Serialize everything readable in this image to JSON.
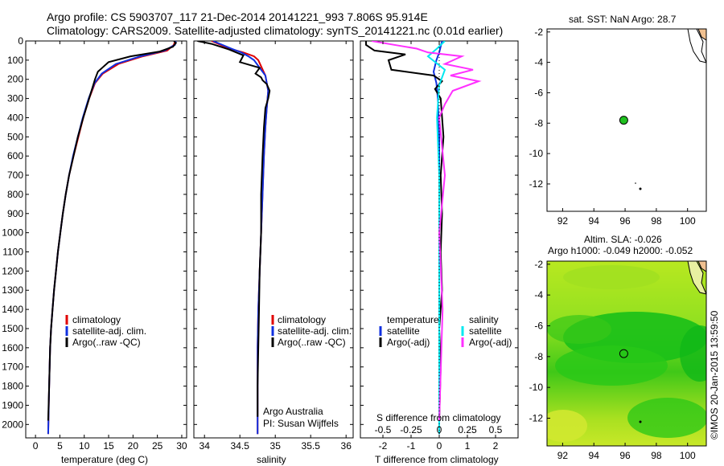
{
  "header": {
    "title_line1": "Argo profile: CS 5903707_117 21-Dec-2014 20141221_993 7.806S 95.914E",
    "title_line2": "Climatology: CARS2009. Satellite-adjusted climatology: synTS_20141221.nc (0.01d earlier)"
  },
  "colors": {
    "climatology": "#e00000",
    "satellite": "#1030e0",
    "argo": "#000000",
    "sat_salt": "#00e8f0",
    "argo_salt": "#ff30ff",
    "map_dot": "#20c020"
  },
  "chart_data": [
    {
      "type": "line",
      "id": "temperature",
      "xlabel": "temperature (deg C)",
      "xlim": [
        -2,
        31
      ],
      "ylim": [
        2070,
        0
      ],
      "xticks": [
        0,
        5,
        10,
        15,
        20,
        25,
        30
      ],
      "xtick_labels": [
        "0",
        "5",
        "10",
        "15",
        "20",
        "25",
        "30"
      ],
      "yticks": [
        0,
        100,
        200,
        300,
        400,
        500,
        600,
        700,
        800,
        900,
        1000,
        1100,
        1200,
        1300,
        1400,
        1500,
        1600,
        1700,
        1800,
        1900,
        2000
      ],
      "ytick_labels": [
        "0",
        "100",
        "200",
        "300",
        "400",
        "500",
        "600",
        "700",
        "800",
        "900",
        "1000",
        "1100",
        "1200",
        "1300",
        "1400",
        "1500",
        "1600",
        "1700",
        "1800",
        "1900",
        "2000"
      ],
      "legend": [
        "climatology",
        "satellite-adj. clim.",
        "Argo(..raw -QC)"
      ],
      "series": [
        {
          "name": "climatology",
          "color": "#e00000",
          "x": [
            28.6,
            28.4,
            27,
            22,
            17,
            13.8,
            12.2,
            11,
            9.8,
            8.8,
            7.8,
            6.9,
            6.2,
            5.6,
            5.1,
            4.6,
            4.2,
            3.8,
            3.5,
            3.2,
            3.0,
            2.8,
            2.6
          ],
          "y": [
            0,
            20,
            50,
            80,
            120,
            170,
            220,
            300,
            400,
            500,
            600,
            700,
            800,
            900,
            1000,
            1100,
            1200,
            1300,
            1400,
            1500,
            1600,
            1800,
            2050
          ]
        },
        {
          "name": "satellite-adj. clim.",
          "color": "#1030e0",
          "x": [
            28.8,
            28.6,
            26.5,
            21.5,
            16.5,
            13.6,
            12.1,
            10.9,
            9.7,
            8.7,
            7.7,
            6.9,
            6.2,
            5.6,
            5.1,
            4.6,
            4.2,
            3.8,
            3.5,
            3.2,
            3.0,
            2.8,
            2.6
          ],
          "y": [
            0,
            20,
            50,
            80,
            120,
            170,
            220,
            300,
            400,
            500,
            600,
            700,
            800,
            900,
            1000,
            1100,
            1200,
            1300,
            1400,
            1500,
            1600,
            1800,
            2050
          ]
        },
        {
          "name": "Argo",
          "color": "#000000",
          "x": [
            28.4,
            28.8,
            28.2,
            25.5,
            19.5,
            15,
            12.8,
            12.2,
            11,
            9.8,
            8.7,
            7.8,
            6.9,
            6.2,
            5.6,
            5.1,
            4.6,
            4.2,
            3.8,
            3.5,
            3.2,
            3.0,
            2.8,
            2.6
          ],
          "y": [
            0,
            10,
            30,
            55,
            80,
            110,
            160,
            200,
            300,
            400,
            500,
            600,
            700,
            800,
            900,
            1000,
            1100,
            1200,
            1300,
            1400,
            1500,
            1600,
            1800,
            1980
          ]
        }
      ]
    },
    {
      "type": "line",
      "id": "salinity",
      "xlabel": "salinity",
      "xlim": [
        33.85,
        36.1
      ],
      "ylim": [
        2070,
        0
      ],
      "xticks": [
        34,
        34.5,
        35,
        35.5,
        36
      ],
      "xtick_labels": [
        "34",
        "34.5",
        "35",
        "35.5",
        "36"
      ],
      "legend": [
        "climatology",
        "satellite-adj. clim.",
        "Argo(..raw -QC)"
      ],
      "credit_line1": "Argo Australia",
      "credit_line2": "PI: Susan Wijffels",
      "series": [
        {
          "name": "climatology",
          "color": "#e00000",
          "x": [
            34.1,
            34.35,
            34.55,
            34.7,
            34.76,
            34.86,
            34.9,
            34.88,
            34.86,
            34.84,
            34.82,
            34.8,
            34.78,
            34.76,
            34.75,
            34.75,
            34.75,
            34.75
          ],
          "y": [
            0,
            40,
            60,
            80,
            100,
            180,
            260,
            350,
            450,
            600,
            800,
            1000,
            1200,
            1400,
            1600,
            1800,
            1900,
            2050
          ]
        },
        {
          "name": "satellite-adj. clim.",
          "color": "#1030e0",
          "x": [
            34.12,
            34.38,
            34.52,
            34.62,
            34.7,
            34.86,
            34.9,
            34.88,
            34.86,
            34.84,
            34.82,
            34.8,
            34.78,
            34.76,
            34.75,
            34.75,
            34.75,
            34.75
          ],
          "y": [
            0,
            40,
            60,
            80,
            100,
            180,
            260,
            350,
            450,
            600,
            800,
            1000,
            1200,
            1400,
            1600,
            1800,
            1900,
            2050
          ]
        },
        {
          "name": "Argo",
          "color": "#000000",
          "x": [
            33.9,
            34.1,
            34.35,
            34.55,
            34.5,
            34.78,
            34.72,
            34.8,
            34.82,
            34.88,
            34.92,
            34.9,
            34.86,
            34.84,
            34.82,
            34.8,
            34.8,
            34.78,
            34.77,
            34.76,
            34.75,
            34.75
          ],
          "y": [
            0,
            15,
            45,
            75,
            110,
            140,
            170,
            190,
            205,
            225,
            260,
            300,
            350,
            450,
            600,
            800,
            1000,
            1200,
            1400,
            1600,
            1800,
            1960
          ]
        }
      ]
    },
    {
      "type": "line",
      "id": "difference",
      "xlabel": "T difference from climatology",
      "xlabel_top": "S difference from climatology",
      "xlim": [
        -2.8,
        2.8
      ],
      "ylim": [
        2070,
        0
      ],
      "xticks": [
        -2,
        -1,
        0,
        1,
        2
      ],
      "xtick_labels": [
        "-2",
        "-1",
        "0",
        "1",
        "2"
      ],
      "xticks_top": [
        -0.5,
        -0.25,
        0,
        0.25,
        0.5
      ],
      "xtick_top_labels": [
        "-0.5",
        "-0.25",
        "0",
        "0.25",
        "0.5"
      ],
      "legend_temperature_title": "temperature",
      "legend_salinity_title": "salinity",
      "legend_temperature": [
        "satellite",
        "Argo(-adj)"
      ],
      "legend_salinity": [
        "satellite",
        "Argo(-adj)"
      ],
      "series": [
        {
          "name": "T satellite",
          "color": "#1030e0",
          "x": [
            0.1,
            0.0,
            -0.1,
            -0.2,
            -0.1,
            -0.05,
            0,
            0,
            0
          ],
          "y": [
            0,
            60,
            100,
            160,
            220,
            300,
            500,
            1000,
            2050
          ]
        },
        {
          "name": "T Argo",
          "color": "#000000",
          "x": [
            -2.6,
            -2.6,
            -2.3,
            -1.2,
            -1.8,
            -1.7,
            -0.2,
            0.1,
            -0.15,
            0.05,
            0.15,
            0.05,
            0.1,
            0.05,
            0.1,
            0,
            0.05,
            0
          ],
          "y": [
            0,
            20,
            50,
            70,
            100,
            150,
            180,
            210,
            250,
            300,
            500,
            700,
            900,
            1100,
            1300,
            1500,
            1700,
            1980
          ]
        },
        {
          "name": "S satellite",
          "color": "#00e8f0",
          "x": [
            0.05,
            -0.02,
            -0.1,
            0.05,
            0.0,
            -0.02,
            0,
            0,
            0
          ],
          "y": [
            0,
            40,
            80,
            150,
            230,
            400,
            700,
            1000,
            2050
          ]
        },
        {
          "name": "S Argo",
          "color": "#ff30ff",
          "x": [
            -0.6,
            -0.4,
            -0.2,
            -0.1,
            0.2,
            0.05,
            0.3,
            0.1,
            0.35,
            0.12,
            0.05,
            0,
            0.05,
            0,
            0.03,
            0
          ],
          "y": [
            0,
            20,
            40,
            60,
            80,
            120,
            150,
            180,
            210,
            260,
            330,
            400,
            700,
            1000,
            1400,
            1980
          ]
        }
      ]
    },
    {
      "type": "scatter",
      "id": "sst_map",
      "title": "sat. SST: NaN Argo: 28.7",
      "xlim": [
        91,
        101.2
      ],
      "ylim": [
        -13.8,
        -1.8
      ],
      "xticks": [
        92,
        94,
        96,
        98,
        100
      ],
      "xtick_labels": [
        "92",
        "94",
        "96",
        "98",
        "100"
      ],
      "yticks": [
        -2,
        -4,
        -6,
        -8,
        -10,
        -12
      ],
      "ytick_labels": [
        "-2",
        "-4",
        "-6",
        "-8",
        "-10",
        "-12"
      ],
      "float_position": {
        "lon": 95.914,
        "lat": -7.806
      }
    },
    {
      "type": "heatmap",
      "id": "sla_map",
      "title_line1": "Altim. SLA: -0.026",
      "title_line2": "Argo h1000: -0.049 h2000: -0.052",
      "xlim": [
        91,
        101.2
      ],
      "ylim": [
        -13.8,
        -1.8
      ],
      "xticks": [
        92,
        94,
        96,
        98,
        100
      ],
      "xtick_labels": [
        "92",
        "94",
        "96",
        "98",
        "100"
      ],
      "yticks": [
        -2,
        -4,
        -6,
        -8,
        -10,
        -12
      ],
      "ytick_labels": [
        "-2",
        "-4",
        "-6",
        "-8",
        "-10",
        "-12"
      ],
      "float_position": {
        "lon": 95.914,
        "lat": -7.806
      }
    }
  ],
  "footer": {
    "stamp": "©IMOS 20-Jan-2015 13:59:50"
  }
}
